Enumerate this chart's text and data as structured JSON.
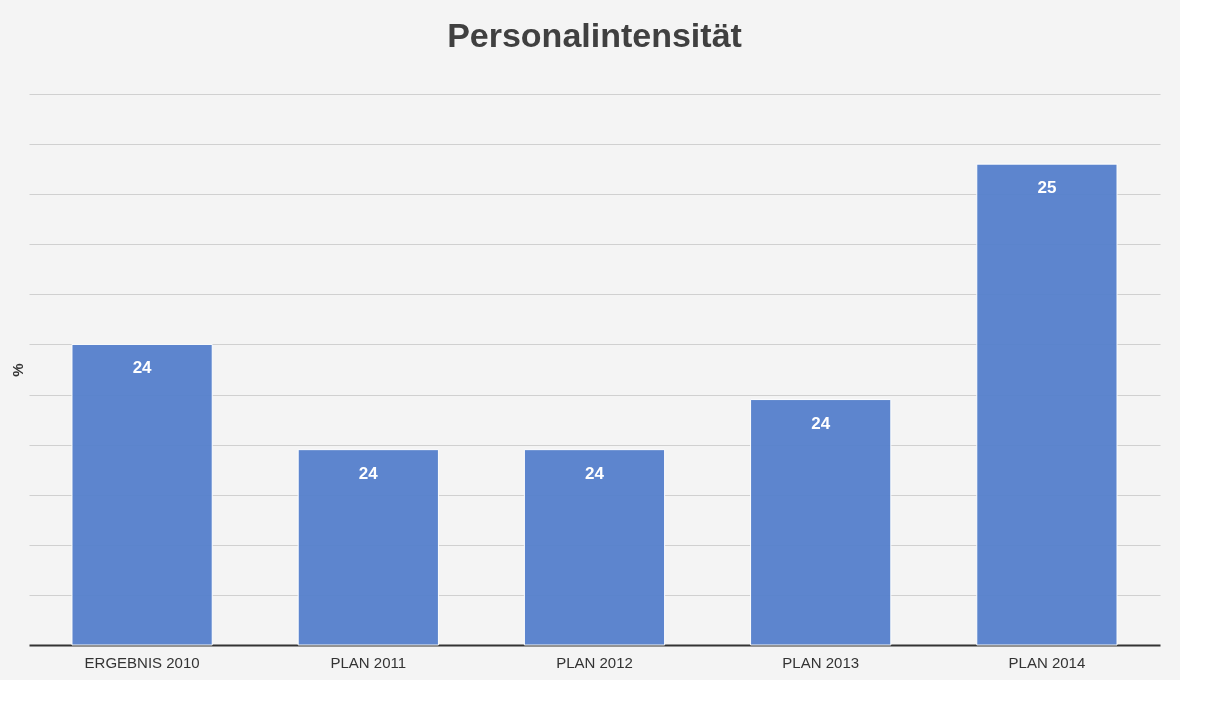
{
  "chart_data": {
    "type": "bar",
    "title": "Personalintensität",
    "ylabel": "%",
    "categories": [
      "ERGEBNIS 2010",
      "PLAN 2011",
      "PLAN 2012",
      "PLAN 2013",
      "PLAN 2014"
    ],
    "values": [
      24.2,
      23.99,
      23.99,
      24.09,
      24.56
    ],
    "value_labels": [
      "24",
      "24",
      "24",
      "24",
      "25"
    ],
    "ylim": [
      23.6,
      24.7
    ],
    "yticks": [
      {
        "value": 23.7,
        "label": null
      },
      {
        "value": 23.8,
        "label": null
      },
      {
        "value": 23.9,
        "label": null
      },
      {
        "value": 24.0,
        "label": null
      },
      {
        "value": 24.1,
        "label": null
      },
      {
        "value": 24.2,
        "label": null
      },
      {
        "value": 24.3,
        "label": null
      },
      {
        "value": 24.4,
        "label": null
      },
      {
        "value": 24.5,
        "label": null
      },
      {
        "value": 24.6,
        "label": null
      },
      {
        "value": 24.7,
        "label": null
      }
    ],
    "color": "#5580cc",
    "grid": "y"
  }
}
